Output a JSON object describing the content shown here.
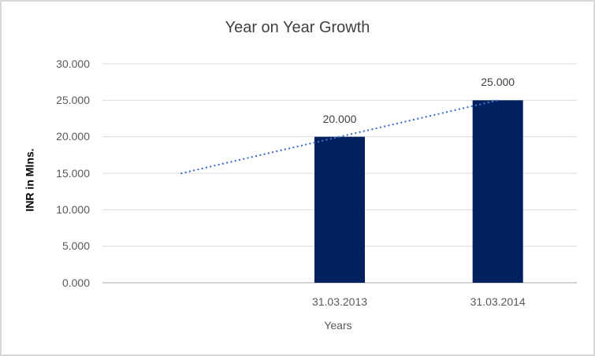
{
  "chart_data": {
    "type": "bar",
    "title": "Year on Year Growth",
    "xlabel": "Years",
    "ylabel": "INR in Mlns.",
    "categories": [
      "",
      "31.03.2013",
      "31.03.2014"
    ],
    "series": [
      {
        "name": "INR in Mlns.",
        "type": "column",
        "color": "#002060",
        "values": [
          null,
          20.0,
          25.0
        ],
        "data_labels": [
          "",
          "20.000",
          "25.000"
        ]
      },
      {
        "name": "Linear trend",
        "type": "dotted-line",
        "color": "#4472C4",
        "values": [
          15.0,
          20.0,
          25.0
        ]
      }
    ],
    "ylim": [
      0,
      30
    ],
    "ytick_step": 5,
    "ytick_labels": [
      "0.000",
      "5.000",
      "10.000",
      "15.000",
      "20.000",
      "25.000",
      "30.000"
    ],
    "legend": "none",
    "grid": "horizontal",
    "colors": {
      "bar": "#002060",
      "trendline": "#4472C4",
      "gridline": "#d9d9d9",
      "axis_line": "#c6c6c6",
      "title_text": "#404040",
      "tick_text": "#595959",
      "data_label_text": "#404040",
      "border": "#d9d9d9",
      "background": "#ffffff"
    }
  }
}
